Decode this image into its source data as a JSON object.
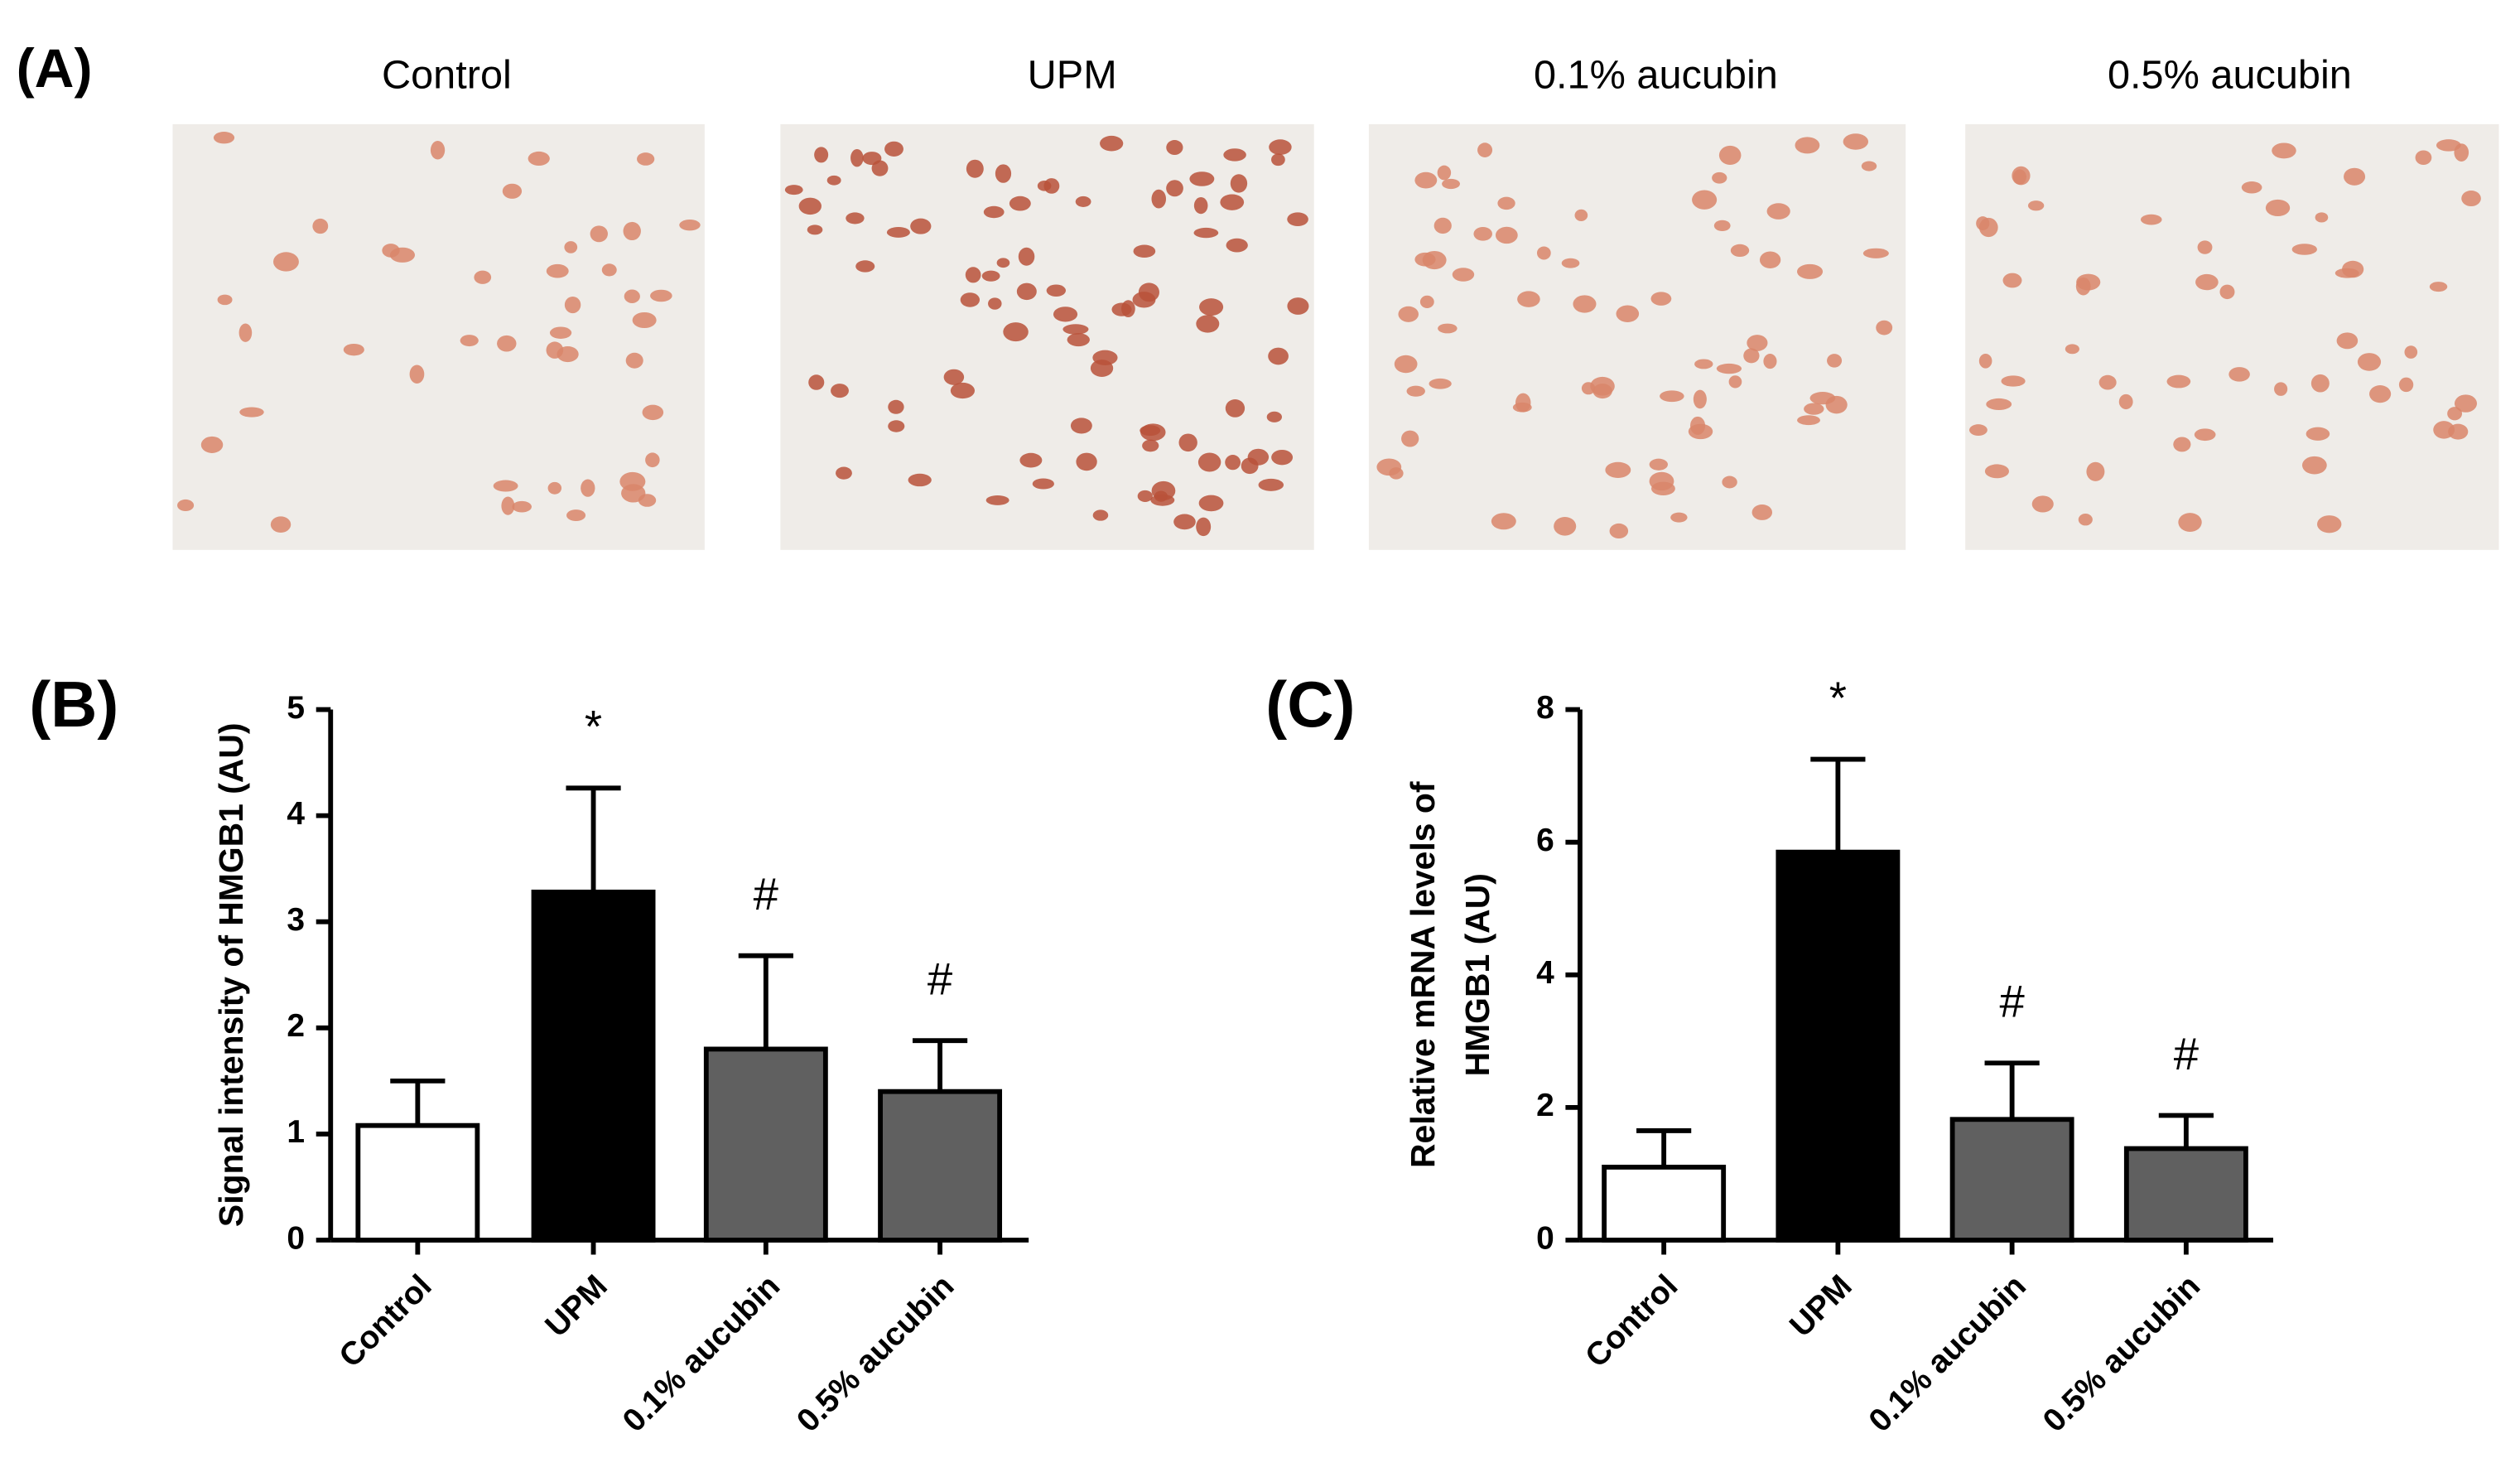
{
  "panel_a": {
    "label": "(A)",
    "images": [
      "Control",
      "UPM",
      "0.1% aucubin",
      "0.5% aucubin"
    ]
  },
  "chart_data": [
    {
      "type": "bar",
      "panel_label": "(B)",
      "y_label": [
        "Signal intensity of HMGB1 (AU)"
      ],
      "categories": [
        "Control",
        "UPM",
        "0.1% aucubin",
        "0.5% aucubin"
      ],
      "values": [
        1.08,
        3.28,
        1.8,
        1.4
      ],
      "errors": [
        0.42,
        0.98,
        0.88,
        0.48
      ],
      "annotations": [
        null,
        "*",
        "#",
        "#"
      ],
      "colors": [
        "#ffffff",
        "#000000",
        "#606060",
        "#606060"
      ],
      "ylim": [
        0,
        5
      ],
      "yticks": [
        0,
        1,
        2,
        3,
        4,
        5
      ]
    },
    {
      "type": "bar",
      "panel_label": "(C)",
      "y_label": [
        "Relative mRNA levels of",
        "HMGB1 (AU)"
      ],
      "categories": [
        "Control",
        "UPM",
        "0.1% aucubin",
        "0.5% aucubin"
      ],
      "values": [
        1.1,
        5.85,
        1.82,
        1.38
      ],
      "errors": [
        0.55,
        1.4,
        0.85,
        0.5
      ],
      "annotations": [
        null,
        "*",
        "#",
        "#"
      ],
      "colors": [
        "#ffffff",
        "#000000",
        "#606060",
        "#606060"
      ],
      "ylim": [
        0,
        8
      ],
      "yticks": [
        0,
        2,
        4,
        6,
        8
      ]
    }
  ]
}
